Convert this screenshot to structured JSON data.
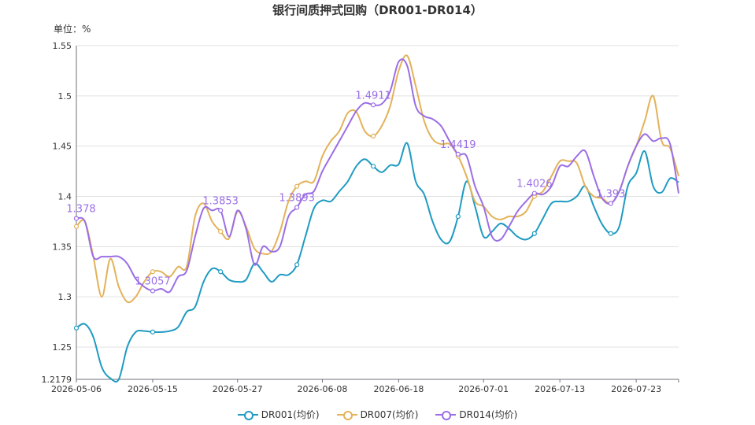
{
  "chart_data": {
    "type": "line",
    "title": "银行间质押式回购（DR001-DR014）",
    "ylabel": "单位：%",
    "ylim": [
      1.2179,
      1.55
    ],
    "y_ticks": [
      "1.2179",
      "1.25",
      "1.3",
      "1.35",
      "1.4",
      "1.45",
      "1.5",
      "1.55"
    ],
    "x_ticks": [
      "2026-05-06",
      "2026-05-15",
      "2026-05-27",
      "2026-06-08",
      "2026-06-18",
      "2026-07-01",
      "2026-07-13",
      "2026-07-23"
    ],
    "grid": true,
    "legend_position": "bottom",
    "series": [
      {
        "name": "DR001(均价)",
        "color": "#1f9bc2",
        "values": [
          1.269,
          1.273,
          1.26,
          1.23,
          1.219,
          1.218,
          1.25,
          1.265,
          1.266,
          1.265,
          1.265,
          1.266,
          1.27,
          1.285,
          1.29,
          1.315,
          1.328,
          1.325,
          1.317,
          1.315,
          1.317,
          1.333,
          1.325,
          1.315,
          1.322,
          1.322,
          1.332,
          1.36,
          1.388,
          1.396,
          1.395,
          1.405,
          1.415,
          1.43,
          1.437,
          1.43,
          1.424,
          1.431,
          1.432,
          1.453,
          1.415,
          1.402,
          1.375,
          1.357,
          1.355,
          1.38,
          1.415,
          1.39,
          1.36,
          1.365,
          1.373,
          1.368,
          1.36,
          1.357,
          1.363,
          1.378,
          1.393,
          1.395,
          1.395,
          1.4,
          1.41,
          1.39,
          1.372,
          1.363,
          1.37,
          1.41,
          1.423,
          1.445,
          1.41,
          1.404,
          1.418,
          1.414
        ]
      },
      {
        "name": "DR007(均价)",
        "color": "#e3b259",
        "values": [
          1.37,
          1.375,
          1.34,
          1.3,
          1.338,
          1.31,
          1.295,
          1.3,
          1.315,
          1.325,
          1.325,
          1.32,
          1.33,
          1.33,
          1.38,
          1.393,
          1.375,
          1.365,
          1.358,
          1.385,
          1.37,
          1.348,
          1.343,
          1.345,
          1.365,
          1.395,
          1.41,
          1.415,
          1.415,
          1.44,
          1.455,
          1.465,
          1.483,
          1.484,
          1.465,
          1.46,
          1.47,
          1.49,
          1.525,
          1.54,
          1.51,
          1.475,
          1.457,
          1.452,
          1.452,
          1.44,
          1.42,
          1.395,
          1.39,
          1.38,
          1.377,
          1.38,
          1.38,
          1.385,
          1.4,
          1.405,
          1.42,
          1.435,
          1.435,
          1.433,
          1.41,
          1.4,
          1.398,
          1.393,
          1.405,
          1.43,
          1.45,
          1.475,
          1.5,
          1.455,
          1.448,
          1.42
        ]
      },
      {
        "name": "DR014(均价)",
        "color": "#9b6ee6",
        "values": [
          1.378,
          1.375,
          1.34,
          1.34,
          1.34,
          1.34,
          1.333,
          1.318,
          1.31,
          1.306,
          1.308,
          1.305,
          1.32,
          1.326,
          1.36,
          1.388,
          1.386,
          1.386,
          1.36,
          1.386,
          1.368,
          1.332,
          1.35,
          1.345,
          1.35,
          1.38,
          1.389,
          1.402,
          1.405,
          1.425,
          1.44,
          1.455,
          1.47,
          1.485,
          1.493,
          1.491,
          1.492,
          1.505,
          1.534,
          1.53,
          1.49,
          1.48,
          1.477,
          1.47,
          1.455,
          1.442,
          1.44,
          1.41,
          1.39,
          1.36,
          1.357,
          1.37,
          1.385,
          1.395,
          1.403,
          1.402,
          1.41,
          1.43,
          1.43,
          1.44,
          1.445,
          1.42,
          1.398,
          1.393,
          1.405,
          1.43,
          1.45,
          1.462,
          1.455,
          1.458,
          1.452,
          1.403
        ]
      }
    ],
    "annotations": [
      {
        "series": 2,
        "index": 0,
        "text": "1.378"
      },
      {
        "series": 2,
        "index": 9,
        "text": "1.3057"
      },
      {
        "series": 2,
        "index": 17,
        "text": "1.3853"
      },
      {
        "series": 2,
        "index": 26,
        "text": "1.3893"
      },
      {
        "series": 2,
        "index": 35,
        "text": "1.4911"
      },
      {
        "series": 2,
        "index": 45,
        "text": "1.4419"
      },
      {
        "series": 2,
        "index": 54,
        "text": "1.4026"
      },
      {
        "series": 2,
        "index": 63,
        "text": "1.393"
      }
    ],
    "marker_indices": [
      0,
      9,
      17,
      26,
      35,
      45,
      54,
      63
    ]
  }
}
